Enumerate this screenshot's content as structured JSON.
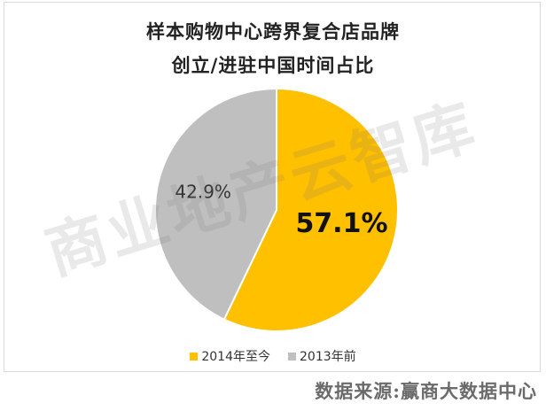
{
  "chart_data": {
    "type": "pie",
    "title_lines": [
      "样本购物中心跨界复合店品牌",
      "创立/进驻中国时间占比"
    ],
    "slices": [
      {
        "name": "2014年至今",
        "value": 57.1,
        "label": "57.1%",
        "color": "#FFC000"
      },
      {
        "name": "2013年前",
        "value": 42.9,
        "label": "42.9%",
        "color": "#BFBFBF"
      }
    ],
    "legend_position": "bottom-center",
    "start_angle": "12 o'clock",
    "direction": "clockwise"
  },
  "watermark": "商业地产云智库",
  "source": "数据来源:赢商大数据中心"
}
